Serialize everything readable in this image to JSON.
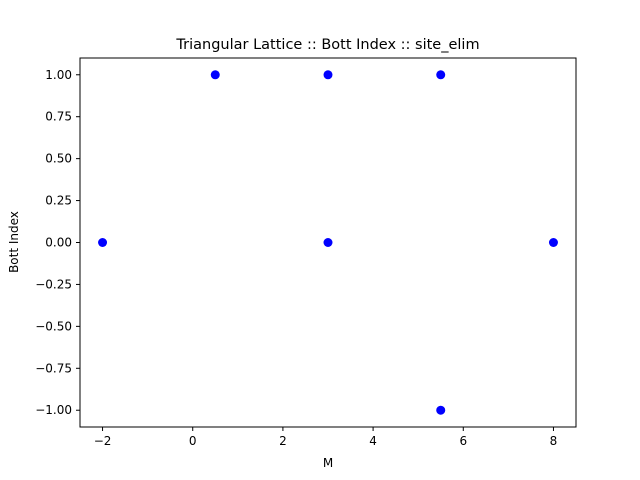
{
  "chart_data": {
    "type": "scatter",
    "title": "Triangular Lattice :: Bott Index :: site_elim",
    "xlabel": "M",
    "ylabel": "Bott Index",
    "xlim": [
      -2.5,
      8.5
    ],
    "ylim": [
      -1.1,
      1.1
    ],
    "grid": false,
    "marker_color": "#0000ff",
    "xticks": [
      {
        "value": -2,
        "label": "−2"
      },
      {
        "value": 0,
        "label": "0"
      },
      {
        "value": 2,
        "label": "2"
      },
      {
        "value": 4,
        "label": "4"
      },
      {
        "value": 6,
        "label": "6"
      },
      {
        "value": 8,
        "label": "8"
      }
    ],
    "yticks": [
      {
        "value": 1.0,
        "label": "1.00"
      },
      {
        "value": 0.75,
        "label": "0.75"
      },
      {
        "value": 0.5,
        "label": "0.50"
      },
      {
        "value": 0.25,
        "label": "0.25"
      },
      {
        "value": 0.0,
        "label": "0.00"
      },
      {
        "value": -0.25,
        "label": "−0.25"
      },
      {
        "value": -0.5,
        "label": "−0.50"
      },
      {
        "value": -0.75,
        "label": "−0.75"
      },
      {
        "value": -1.0,
        "label": "−1.00"
      }
    ],
    "points": [
      {
        "x": -2.0,
        "y": 0.0
      },
      {
        "x": 0.5,
        "y": 1.0
      },
      {
        "x": 3.0,
        "y": 1.0
      },
      {
        "x": 3.0,
        "y": 0.0
      },
      {
        "x": 5.5,
        "y": 1.0
      },
      {
        "x": 5.5,
        "y": -1.0
      },
      {
        "x": 8.0,
        "y": 0.0
      }
    ]
  }
}
